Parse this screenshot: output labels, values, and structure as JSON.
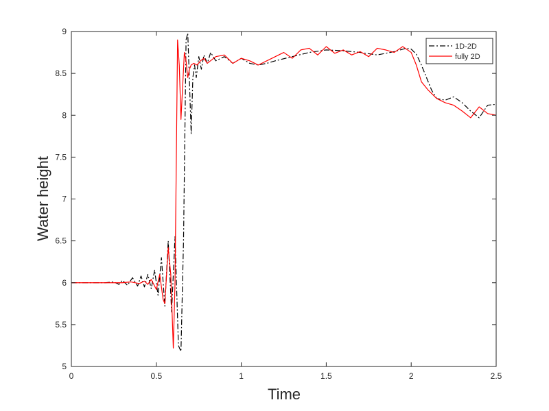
{
  "chart_data": {
    "type": "line",
    "title": "",
    "xlabel": "Time",
    "ylabel": "Water height",
    "xlim": [
      0,
      2.5
    ],
    "ylim": [
      5,
      9
    ],
    "xticks": [
      0,
      0.5,
      1,
      1.5,
      2,
      2.5
    ],
    "xtick_labels": [
      "0",
      "0.5",
      "1",
      "1.5",
      "2",
      "2.5"
    ],
    "yticks": [
      5,
      5.5,
      6,
      6.5,
      7,
      7.5,
      8,
      8.5,
      9
    ],
    "ytick_labels": [
      "5",
      "5.5",
      "6",
      "6.5",
      "7",
      "7.5",
      "8",
      "8.5",
      "9"
    ],
    "grid": false,
    "legend_position": "top-right",
    "series": [
      {
        "name": "1D-2D",
        "color": "#000000",
        "style": "dash-dot",
        "x": [
          0,
          0.2,
          0.25,
          0.28,
          0.3,
          0.33,
          0.36,
          0.39,
          0.41,
          0.43,
          0.45,
          0.47,
          0.49,
          0.51,
          0.53,
          0.55,
          0.57,
          0.59,
          0.61,
          0.63,
          0.645,
          0.66,
          0.675,
          0.685,
          0.695,
          0.705,
          0.715,
          0.725,
          0.735,
          0.75,
          0.765,
          0.78,
          0.8,
          0.82,
          0.85,
          0.9,
          0.95,
          1.0,
          1.05,
          1.1,
          1.15,
          1.2,
          1.3,
          1.4,
          1.5,
          1.6,
          1.7,
          1.8,
          1.9,
          1.97,
          2.0,
          2.03,
          2.06,
          2.09,
          2.12,
          2.15,
          2.2,
          2.25,
          2.3,
          2.35,
          2.4,
          2.45,
          2.5
        ],
        "y": [
          6,
          6,
          6.01,
          5.98,
          6.03,
          5.97,
          6.06,
          5.96,
          6.08,
          5.95,
          6.1,
          5.93,
          6.15,
          5.85,
          6.3,
          5.72,
          6.5,
          5.65,
          6.55,
          5.25,
          5.18,
          6.5,
          8.9,
          8.98,
          8.4,
          7.78,
          8.45,
          8.6,
          8.45,
          8.7,
          8.55,
          8.72,
          8.62,
          8.75,
          8.65,
          8.7,
          8.62,
          8.68,
          8.62,
          8.6,
          8.62,
          8.65,
          8.7,
          8.75,
          8.78,
          8.77,
          8.75,
          8.72,
          8.76,
          8.8,
          8.79,
          8.73,
          8.6,
          8.45,
          8.3,
          8.2,
          8.18,
          8.22,
          8.15,
          8.05,
          7.97,
          8.12,
          8.13
        ]
      },
      {
        "name": "fully 2D",
        "color": "#ff0000",
        "style": "solid",
        "x": [
          0,
          0.3,
          0.35,
          0.4,
          0.43,
          0.45,
          0.47,
          0.5,
          0.52,
          0.54,
          0.55,
          0.57,
          0.585,
          0.6,
          0.61,
          0.625,
          0.635,
          0.645,
          0.655,
          0.665,
          0.675,
          0.685,
          0.695,
          0.705,
          0.72,
          0.74,
          0.76,
          0.78,
          0.8,
          0.85,
          0.9,
          0.95,
          1.0,
          1.05,
          1.1,
          1.15,
          1.2,
          1.25,
          1.3,
          1.35,
          1.4,
          1.45,
          1.5,
          1.55,
          1.6,
          1.65,
          1.7,
          1.75,
          1.8,
          1.85,
          1.9,
          1.95,
          2.0,
          2.03,
          2.06,
          2.1,
          2.15,
          2.2,
          2.25,
          2.3,
          2.35,
          2.4,
          2.45,
          2.5
        ],
        "y": [
          6,
          6,
          6.01,
          5.99,
          6.02,
          5.98,
          6.04,
          5.92,
          6.1,
          5.8,
          5.75,
          6.42,
          6.1,
          5.22,
          6.0,
          8.9,
          8.6,
          7.95,
          8.35,
          8.75,
          8.65,
          8.45,
          8.55,
          8.6,
          8.62,
          8.6,
          8.65,
          8.68,
          8.62,
          8.7,
          8.72,
          8.62,
          8.68,
          8.65,
          8.6,
          8.65,
          8.7,
          8.75,
          8.68,
          8.78,
          8.8,
          8.72,
          8.82,
          8.74,
          8.78,
          8.72,
          8.76,
          8.7,
          8.8,
          8.78,
          8.75,
          8.82,
          8.75,
          8.6,
          8.4,
          8.3,
          8.2,
          8.15,
          8.12,
          8.05,
          7.97,
          8.1,
          8.02,
          8.0
        ]
      }
    ]
  }
}
